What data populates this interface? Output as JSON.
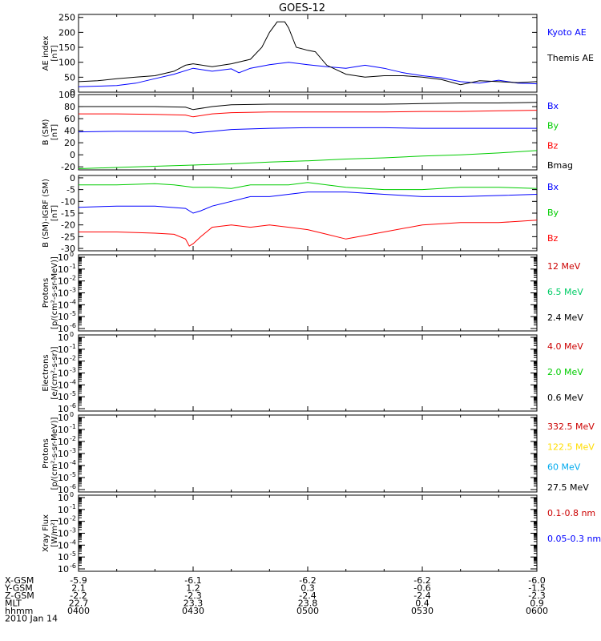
{
  "chart_data": {
    "type": "line",
    "title": "GOES-12",
    "x_range": [
      "0400",
      "0600"
    ],
    "x_ticks": [
      "0400",
      "0430",
      "0500",
      "0530",
      "0600"
    ],
    "footer": {
      "rows": [
        {
          "label": "X-GSM",
          "values": [
            "-5.9",
            "-6.1",
            "-6.2",
            "-6.2",
            "-6.0"
          ]
        },
        {
          "label": "Y-GSM",
          "values": [
            "2.1",
            "1.2",
            "0.3",
            "-0.6",
            "-1.5"
          ]
        },
        {
          "label": "Z-GSM",
          "values": [
            "-2.2",
            "-2.3",
            "-2.4",
            "-2.4",
            "-2.3"
          ]
        },
        {
          "label": "MLT",
          "values": [
            "22.7",
            "23.3",
            "23.8",
            "0.4",
            "0.9"
          ]
        },
        {
          "label": "hhmm",
          "values": [
            "0400",
            "0430",
            "0500",
            "0530",
            "0600"
          ]
        }
      ],
      "date": "2010 Jan 14"
    },
    "panels": [
      {
        "ylabel": [
          "AE index",
          "[nT]"
        ],
        "scale": "linear",
        "ylim": [
          0,
          260
        ],
        "yticks": [
          "0",
          "50",
          "100",
          "150",
          "200",
          "250"
        ],
        "series": [
          {
            "name": "Kyoto AE",
            "color": "#0000ff",
            "x": [
              0,
              5,
              10,
              15,
              20,
              25,
              30,
              35,
              40,
              42,
              45,
              50,
              55,
              60,
              65,
              70,
              75,
              80,
              85,
              90,
              95,
              100,
              105,
              110,
              115,
              120
            ],
            "y": [
              18,
              20,
              22,
              30,
              45,
              60,
              80,
              70,
              78,
              65,
              80,
              92,
              100,
              92,
              85,
              80,
              90,
              80,
              65,
              55,
              48,
              35,
              30,
              40,
              30,
              28
            ]
          },
          {
            "name": "Themis AE",
            "color": "#000000",
            "x": [
              0,
              5,
              10,
              15,
              20,
              25,
              28,
              30,
              35,
              40,
              45,
              48,
              50,
              52,
              54,
              55,
              57,
              60,
              62,
              65,
              70,
              75,
              80,
              85,
              90,
              95,
              100,
              105,
              110,
              115,
              120
            ],
            "y": [
              35,
              38,
              45,
              50,
              55,
              70,
              90,
              95,
              85,
              95,
              110,
              150,
              200,
              235,
              235,
              215,
              150,
              140,
              135,
              90,
              60,
              50,
              55,
              55,
              50,
              42,
              25,
              38,
              35,
              32,
              35
            ]
          }
        ],
        "legend": [
          "Kyoto AE",
          "Themis AE"
        ]
      },
      {
        "ylabel": [
          "B (SM)",
          "[nT]"
        ],
        "scale": "linear",
        "ylim": [
          -25,
          100
        ],
        "yticks": [
          "-20",
          "0",
          "20",
          "40",
          "60",
          "80",
          "100"
        ],
        "series": [
          {
            "name": "Bx",
            "color": "#000000",
            "x": [
              0,
              10,
              20,
              28,
              30,
              35,
              40,
              50,
              60,
              70,
              80,
              90,
              100,
              110,
              120
            ],
            "y": [
              80,
              80,
              80,
              79,
              75,
              80,
              83,
              84,
              84,
              84,
              84,
              85,
              86,
              86,
              87
            ]
          },
          {
            "name": "By",
            "color": "#00cc00",
            "x": [
              0,
              10,
              20,
              30,
              40,
              50,
              60,
              70,
              80,
              90,
              100,
              110,
              120
            ],
            "y": [
              -23,
              -21,
              -19,
              -17,
              -15,
              -12,
              -10,
              -7,
              -5,
              -2,
              0,
              3,
              7
            ]
          },
          {
            "name": "Bz",
            "color": "#ff0000",
            "x": [
              0,
              10,
              20,
              28,
              30,
              35,
              40,
              50,
              60,
              70,
              80,
              90,
              100,
              110,
              120
            ],
            "y": [
              68,
              68,
              67,
              66,
              63,
              68,
              70,
              71,
              71,
              71,
              71,
              72,
              72,
              73,
              74
            ]
          },
          {
            "name": "Bmag",
            "color": "#0000ff",
            "x": [
              0,
              10,
              20,
              28,
              30,
              35,
              40,
              50,
              60,
              70,
              80,
              90,
              100,
              110,
              120
            ],
            "y": [
              38,
              39,
              39,
              39,
              36,
              39,
              42,
              44,
              45,
              45,
              45,
              44,
              44,
              44,
              44
            ]
          }
        ],
        "legend": [
          "Bx",
          "By",
          "Bz",
          "Bmag"
        ]
      },
      {
        "ylabel": [
          "B (SM)-IGRF (SM)",
          "[nT]"
        ],
        "scale": "linear",
        "ylim": [
          -31,
          1
        ],
        "yticks": [
          "-30",
          "-25",
          "-20",
          "-15",
          "-10",
          "-5",
          "0"
        ],
        "series": [
          {
            "name": "Bx",
            "color": "#0000ff",
            "x": [
              0,
              10,
              20,
              28,
              30,
              32,
              35,
              40,
              45,
              50,
              55,
              60,
              70,
              80,
              90,
              100,
              110,
              120
            ],
            "y": [
              -12.5,
              -12,
              -12,
              -13,
              -15,
              -14,
              -12,
              -10,
              -8,
              -8,
              -7,
              -6,
              -6,
              -7,
              -8,
              -8,
              -7.5,
              -7
            ]
          },
          {
            "name": "By",
            "color": "#00cc00",
            "x": [
              0,
              10,
              20,
              25,
              30,
              35,
              40,
              45,
              50,
              55,
              60,
              65,
              70,
              80,
              90,
              100,
              110,
              120
            ],
            "y": [
              -3,
              -3,
              -2.5,
              -3,
              -4,
              -4,
              -4.5,
              -3,
              -3,
              -3,
              -2,
              -3,
              -4,
              -5,
              -5,
              -4,
              -4,
              -4.5
            ]
          },
          {
            "name": "Bz",
            "color": "#ff0000",
            "x": [
              0,
              10,
              20,
              25,
              28,
              29,
              30,
              32,
              35,
              40,
              45,
              50,
              55,
              60,
              65,
              70,
              80,
              90,
              100,
              110,
              120
            ],
            "y": [
              -23,
              -23,
              -23.5,
              -24,
              -26,
              -29,
              -28,
              -25,
              -21,
              -20,
              -21,
              -20,
              -21,
              -22,
              -24,
              -26,
              -23,
              -20,
              -19,
              -19,
              -18
            ]
          }
        ],
        "legend": [
          "Bx",
          "By",
          "Bz"
        ]
      },
      {
        "ylabel": [
          "Protons",
          "[p/(cm²-s-sr-MeV)]"
        ],
        "scale": "log",
        "exponents": [
          0,
          -1,
          -2,
          -3,
          -4,
          -5,
          -6
        ],
        "series": [],
        "legend": [
          "12 MeV",
          "6.5 MeV",
          "2.4 MeV"
        ],
        "legend_colors": [
          "#cc0000",
          "#00cc66",
          "#000000"
        ]
      },
      {
        "ylabel": [
          "Electrons",
          "[e/(cm²-s-sr)]"
        ],
        "scale": "log",
        "exponents": [
          0,
          -1,
          -2,
          -3,
          -4,
          -5,
          -6
        ],
        "series": [],
        "legend": [
          "4.0 MeV",
          "2.0 MeV",
          "0.6 MeV"
        ],
        "legend_colors": [
          "#cc0000",
          "#00cc00",
          "#000000"
        ]
      },
      {
        "ylabel": [
          "Protons",
          "[p/(cm²-s-sr-MeV)]"
        ],
        "scale": "log",
        "exponents": [
          0,
          -1,
          -2,
          -3,
          -4,
          -5,
          -6
        ],
        "series": [],
        "legend": [
          "332.5 MeV",
          "122.5 MeV",
          "60 MeV",
          "27.5 MeV"
        ],
        "legend_colors": [
          "#cc0000",
          "#ffdd00",
          "#00aaee",
          "#000000"
        ]
      },
      {
        "ylabel": [
          "Xray Flux",
          "[W/m²]"
        ],
        "scale": "log",
        "exponents": [
          0,
          -1,
          -2,
          -3,
          -4,
          -5,
          -6
        ],
        "series": [],
        "legend": [
          "0.1-0.8 nm",
          "0.05-0.3 nm"
        ],
        "legend_colors": [
          "#cc0000",
          "#0000ff"
        ]
      }
    ]
  }
}
